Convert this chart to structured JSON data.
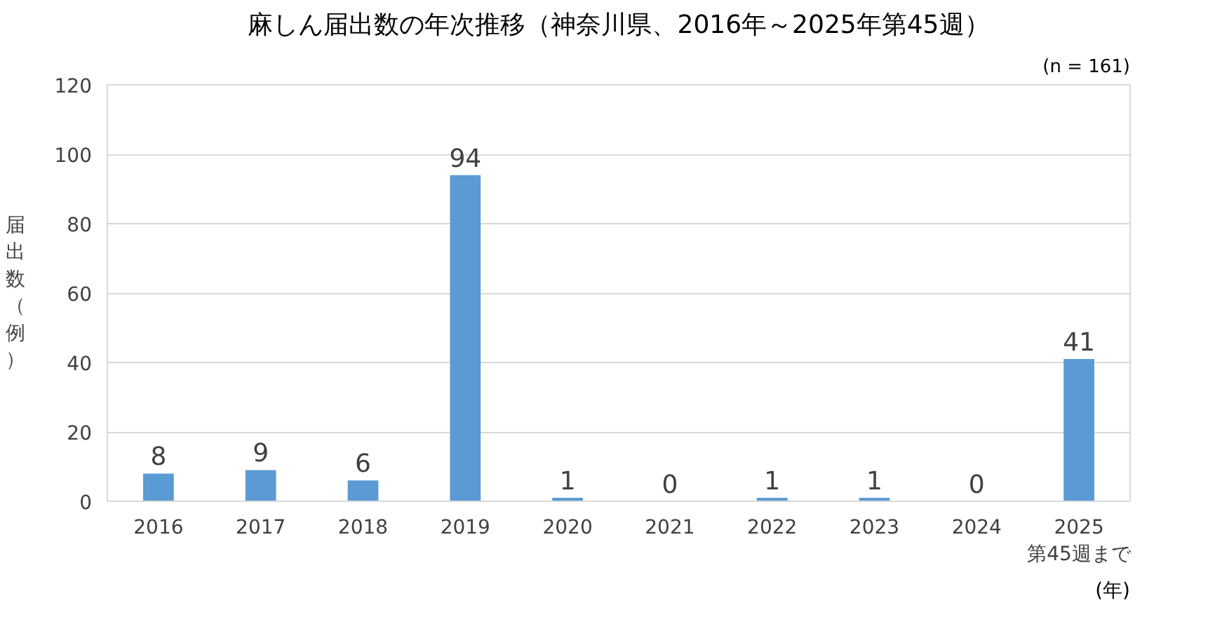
{
  "chart_data": {
    "type": "bar",
    "title": "麻しん届出数の年次推移（神奈川県、2016年～2025年第45週）",
    "subtitle": "(n = 161)",
    "ylabel": "届出数（例）",
    "xlabel": "(年)",
    "categories": [
      "2016",
      "2017",
      "2018",
      "2019",
      "2020",
      "2021",
      "2022",
      "2023",
      "2024",
      "2025\n第45週まで"
    ],
    "values": [
      8,
      9,
      6,
      94,
      1,
      0,
      1,
      1,
      0,
      41
    ],
    "color": "#5b9bd5",
    "ylim": [
      0,
      120
    ],
    "yticks": [
      0,
      20,
      40,
      60,
      80,
      100,
      120
    ],
    "grid": "y",
    "data_labels": true
  }
}
